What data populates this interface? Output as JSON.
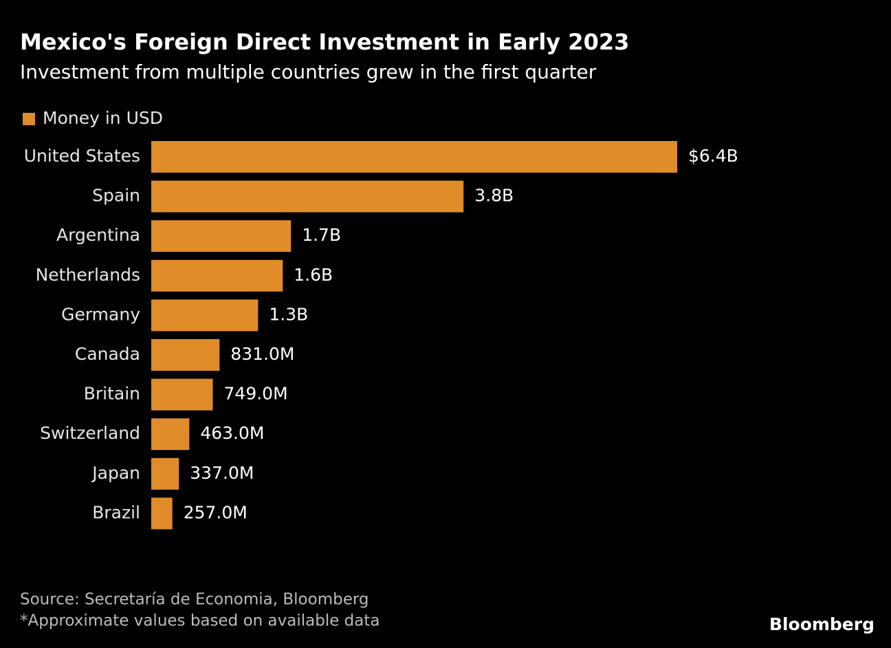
{
  "chart_data": {
    "type": "bar",
    "orientation": "horizontal",
    "title": "Mexico's Foreign Direct Investment in Early 2023",
    "subtitle": "Investment from multiple countries grew in the first quarter",
    "categories": [
      "United States",
      "Spain",
      "Argentina",
      "Netherlands",
      "Germany",
      "Canada",
      "Britain",
      "Switzerland",
      "Japan",
      "Brazil"
    ],
    "series": [
      {
        "name": "Money in USD",
        "color": "#e08c2a",
        "values": [
          6400000000,
          3800000000,
          1700000000,
          1600000000,
          1300000000,
          831000000,
          749000000,
          463000000,
          337000000,
          257000000
        ],
        "value_labels": [
          "$6.4B",
          "3.8B",
          "1.7B",
          "1.6B",
          "1.3B",
          "831.0M",
          "749.0M",
          "463.0M",
          "337.0M",
          "257.0M"
        ]
      }
    ],
    "legend": "top-left",
    "source": "Source: Secretaría de Economia, Bloomberg",
    "note": "*Approximate values based on available data",
    "brand": "Bloomberg"
  }
}
